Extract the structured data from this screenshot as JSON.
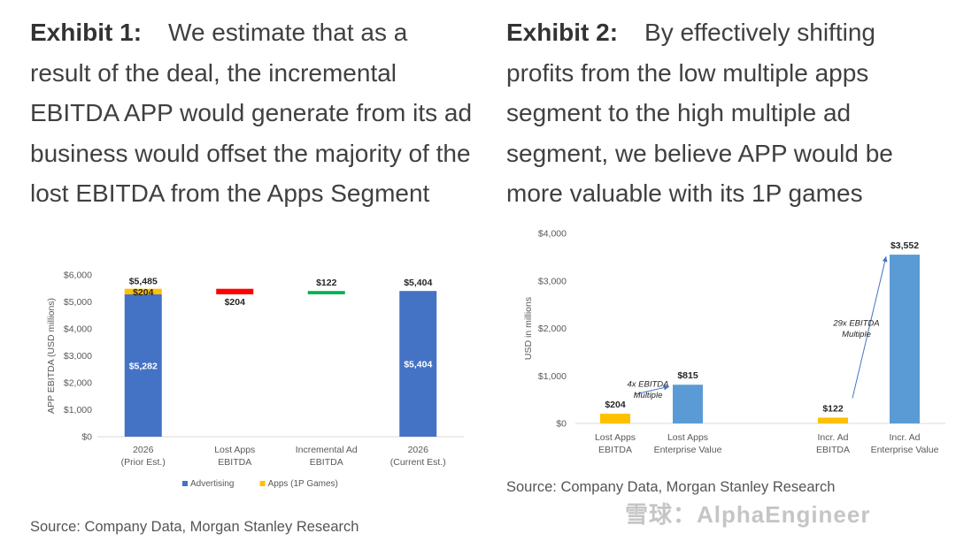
{
  "exhibit1": {
    "label": "Exhibit 1:",
    "title": "We estimate that as a result of the deal, the incremental EBITDA APP would generate from its ad business would offset the majority of the lost EBITDA from the Apps Segment",
    "source": "Source: Company Data, Morgan Stanley Research"
  },
  "exhibit2": {
    "label": "Exhibit 2:",
    "title": "By effectively shifting profits from the low multiple apps segment to the high multiple ad segment, we believe APP would be more valuable with its 1P games",
    "source": "Source: Company Data, Morgan Stanley Research"
  },
  "watermark": "雪球：AlphaEngineer",
  "chart_data": [
    {
      "type": "bar",
      "subtype": "waterfall",
      "ylabel": "APP EBITDA (USD millions)",
      "ylim": [
        0,
        6000
      ],
      "yticks": [
        0,
        1000,
        2000,
        3000,
        4000,
        5000,
        6000
      ],
      "ytick_labels": [
        "$0",
        "$1,000",
        "$2,000",
        "$3,000",
        "$4,000",
        "$5,000",
        "$6,000"
      ],
      "categories": [
        [
          "2026",
          "(Prior Est.)"
        ],
        [
          "Lost Apps",
          "EBITDA"
        ],
        [
          "Incremental Ad",
          "EBITDA"
        ],
        [
          "2026",
          "(Current Est.)"
        ]
      ],
      "bars": [
        {
          "category": 0,
          "segments": [
            {
              "series": "Advertising",
              "base": 0,
              "value": 5282,
              "label": "$5,282"
            },
            {
              "series": "Apps (1P Games)",
              "base": 5282,
              "value": 204,
              "label": "$204"
            }
          ],
          "total_label": "$5,485"
        },
        {
          "category": 1,
          "floating": true,
          "base": 5281,
          "value": 204,
          "color": "#ff0000",
          "label": "$204"
        },
        {
          "category": 2,
          "floating": true,
          "base": 5281,
          "value": 122,
          "color": "#00b050",
          "label": "$122"
        },
        {
          "category": 3,
          "segments": [
            {
              "series": "Advertising",
              "base": 0,
              "value": 5404,
              "label": "$5,404"
            }
          ],
          "total_label": "$5,404"
        }
      ],
      "legend": [
        {
          "name": "Advertising",
          "color": "#4472c4"
        },
        {
          "name": "Apps (1P Games)",
          "color": "#ffc000"
        }
      ],
      "legend_position": "bottom"
    },
    {
      "type": "bar",
      "ylabel": "USD in millions",
      "ylim": [
        0,
        4000
      ],
      "yticks": [
        0,
        1000,
        2000,
        3000,
        4000
      ],
      "ytick_labels": [
        "$0",
        "$1,000",
        "$2,000",
        "$3,000",
        "$4,000"
      ],
      "categories": [
        [
          "Lost Apps",
          "EBITDA"
        ],
        [
          "Lost Apps",
          "Enterprise Value"
        ],
        [
          "Incr. Ad",
          "EBITDA"
        ],
        [
          "Incr. Ad",
          "Enterprise Value"
        ]
      ],
      "values": [
        204,
        815,
        122,
        3552
      ],
      "value_labels": [
        "$204",
        "$815",
        "$122",
        "$3,552"
      ],
      "colors": [
        "#ffc000",
        "#5b9bd5",
        "#ffc000",
        "#5b9bd5"
      ],
      "annotations": [
        {
          "lines": [
            "4x EBITDA",
            "Multiple"
          ],
          "from": 0,
          "to": 1
        },
        {
          "lines": [
            "29x EBITDA",
            "Multiple"
          ],
          "from": 2,
          "to": 3
        }
      ]
    }
  ]
}
